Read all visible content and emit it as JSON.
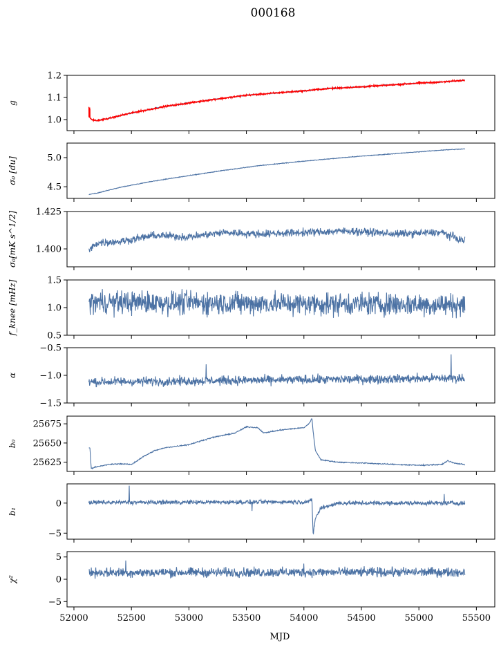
{
  "figure": {
    "title": "000168",
    "xlabel": "MJD"
  },
  "colors": {
    "series": "#4c72a4",
    "fit": "#ff0000",
    "axis": "#000000"
  },
  "chart_data": [
    {
      "type": "line",
      "ylabel": "g",
      "ylim": [
        0.95,
        1.2
      ],
      "xlim": [
        51940,
        55660
      ],
      "yticks": [
        1.0,
        1.1,
        1.2
      ],
      "ytick_labels": [
        "1.0",
        "1.1",
        "1.2"
      ],
      "series": [
        {
          "kind": "trend",
          "color": "#4c72a4",
          "x": [
            52130,
            52150,
            52200,
            52300,
            52500,
            52800,
            53000,
            53200,
            53500,
            53800,
            54000,
            54200,
            54500,
            54800,
            55000,
            55200,
            55400
          ],
          "values": [
            1.02,
            1.0,
            0.995,
            1.005,
            1.03,
            1.06,
            1.075,
            1.09,
            1.11,
            1.122,
            1.13,
            1.14,
            1.148,
            1.158,
            1.165,
            1.17,
            1.178
          ],
          "noise": 0.002
        },
        {
          "kind": "fit",
          "color": "#ff0000",
          "x": [
            52130,
            52150,
            52200,
            52300,
            52500,
            52800,
            53000,
            53200,
            53500,
            53800,
            54000,
            54200,
            54500,
            54800,
            55000,
            55200,
            55400
          ],
          "values": [
            1.02,
            1.0,
            0.995,
            1.005,
            1.03,
            1.06,
            1.075,
            1.09,
            1.11,
            1.122,
            1.13,
            1.14,
            1.148,
            1.158,
            1.165,
            1.17,
            1.178
          ],
          "noise": 0.003,
          "spike": {
            "x": [
              52130,
              52140
            ],
            "values": [
              1.06,
              1.01
            ]
          }
        }
      ]
    },
    {
      "type": "line",
      "ylabel": "σ₀ [du]",
      "ylim": [
        4.3,
        5.25
      ],
      "xlim": [
        51940,
        55660
      ],
      "yticks": [
        4.5,
        5.0
      ],
      "ytick_labels": [
        "4.5",
        "5.0"
      ],
      "series": [
        {
          "kind": "trend",
          "color": "#4c72a4",
          "x": [
            52130,
            52200,
            52400,
            52700,
            53000,
            53300,
            53600,
            54000,
            54400,
            54800,
            55200,
            55400
          ],
          "values": [
            4.37,
            4.39,
            4.49,
            4.6,
            4.69,
            4.78,
            4.86,
            4.94,
            5.01,
            5.07,
            5.13,
            5.15
          ],
          "noise": 0.005
        }
      ]
    },
    {
      "type": "line",
      "ylabel": "σ₀[mK s^1/2]",
      "ylim": [
        1.388,
        1.425
      ],
      "xlim": [
        51940,
        55660
      ],
      "yticks": [
        1.4,
        1.425
      ],
      "ytick_labels": [
        "1.400",
        "1.425"
      ],
      "series": [
        {
          "kind": "trend",
          "color": "#4c72a4",
          "x": [
            52130,
            52200,
            52400,
            52700,
            53000,
            53300,
            53600,
            54000,
            54400,
            54800,
            55200,
            55400
          ],
          "values": [
            1.399,
            1.404,
            1.405,
            1.409,
            1.408,
            1.411,
            1.41,
            1.411,
            1.412,
            1.41,
            1.411,
            1.405
          ],
          "noise": 0.0022
        }
      ]
    },
    {
      "type": "line",
      "ylabel": "f_knee [mHz]",
      "ylim": [
        0.5,
        1.5
      ],
      "xlim": [
        51940,
        55660
      ],
      "yticks": [
        0.5,
        1.0,
        1.5
      ],
      "ytick_labels": [
        "0.5",
        "1.0",
        "1.5"
      ],
      "series": [
        {
          "kind": "trend",
          "color": "#4c72a4",
          "x": [
            52130,
            55400
          ],
          "values": [
            1.1,
            1.05
          ],
          "noise": 0.18,
          "clip": [
            0.5,
            1.5
          ]
        }
      ]
    },
    {
      "type": "line",
      "ylabel": "α",
      "ylim": [
        -1.5,
        -0.5
      ],
      "xlim": [
        51940,
        55660
      ],
      "yticks": [
        -1.5,
        -1.0,
        -0.5
      ],
      "ytick_labels": [
        "−1.5",
        "−1.0",
        "−0.5"
      ],
      "series": [
        {
          "kind": "trend",
          "color": "#4c72a4",
          "x": [
            52130,
            55400
          ],
          "values": [
            -1.12,
            -1.05
          ],
          "noise": 0.07,
          "spikes": [
            {
              "x": 53150,
              "v": -0.8
            },
            {
              "x": 55280,
              "v": -0.62
            }
          ]
        }
      ]
    },
    {
      "type": "line",
      "ylabel": "b₀",
      "ylim": [
        25613,
        25685
      ],
      "xlim": [
        51940,
        55660
      ],
      "yticks": [
        25625,
        25650,
        25675
      ],
      "ytick_labels": [
        "25625",
        "25650",
        "25675"
      ],
      "series": [
        {
          "kind": "trend",
          "color": "#4c72a4",
          "x": [
            52130,
            52140,
            52150,
            52200,
            52300,
            52400,
            52500,
            52600,
            52700,
            52800,
            53000,
            53200,
            53400,
            53500,
            53600,
            53650,
            53800,
            54000,
            54050,
            54070,
            54080,
            54100,
            54150,
            54300,
            54500,
            54800,
            55000,
            55200,
            55250,
            55300,
            55400
          ],
          "values": [
            25644,
            25643,
            25617,
            25619,
            25622,
            25623,
            25622,
            25632,
            25640,
            25644,
            25648,
            25657,
            25663,
            25671,
            25670,
            25663,
            25667,
            25670,
            25676,
            25683,
            25665,
            25640,
            25628,
            25625,
            25624,
            25622,
            25621,
            25622,
            25627,
            25624,
            25622
          ],
          "noise": 0.6
        }
      ]
    },
    {
      "type": "line",
      "ylabel": "b₁",
      "ylim": [
        -6,
        3.2
      ],
      "xlim": [
        51940,
        55660
      ],
      "yticks": [
        -5,
        0
      ],
      "ytick_labels": [
        "−5",
        "0"
      ],
      "series": [
        {
          "kind": "trend",
          "color": "#4c72a4",
          "x": [
            52130,
            54000,
            54050,
            54070,
            54080,
            54100,
            54150,
            54300,
            55400
          ],
          "values": [
            0.1,
            0.2,
            0.3,
            0.5,
            -5.2,
            -2.5,
            -0.8,
            0.0,
            0.0
          ],
          "noise": 0.3,
          "spikes": [
            {
              "x": 52480,
              "v": 2.9
            },
            {
              "x": 53550,
              "v": -1.3
            },
            {
              "x": 55220,
              "v": 1.5
            }
          ]
        }
      ]
    },
    {
      "type": "line",
      "ylabel": "χ²",
      "ylim": [
        -6.2,
        6.2
      ],
      "xlim": [
        51940,
        55660
      ],
      "yticks": [
        -5,
        0,
        5
      ],
      "ytick_labels": [
        "−5",
        "0",
        "5"
      ],
      "xticks": [
        52000,
        52500,
        53000,
        53500,
        54000,
        54500,
        55000,
        55500
      ],
      "xtick_labels": [
        "52000",
        "52500",
        "53000",
        "53500",
        "54000",
        "54500",
        "55000",
        "55500"
      ],
      "series": [
        {
          "kind": "trend",
          "color": "#4c72a4",
          "x": [
            52130,
            55400
          ],
          "values": [
            1.5,
            1.6
          ],
          "noise": 0.9,
          "spikes": [
            {
              "x": 52450,
              "v": 4.2
            },
            {
              "x": 54000,
              "v": 3.5
            }
          ]
        }
      ]
    }
  ]
}
